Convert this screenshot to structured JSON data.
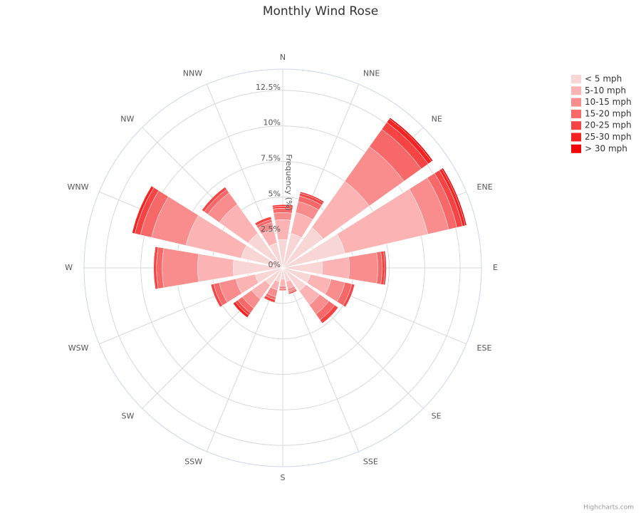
{
  "chart_data": {
    "type": "windrose",
    "title": "Monthly Wind Rose",
    "y_axis_title": "Frequency (%)",
    "credit": "Highcharts.com",
    "categories": [
      "N",
      "NNE",
      "NE",
      "ENE",
      "E",
      "ESE",
      "SE",
      "SSE",
      "S",
      "SSW",
      "SW",
      "WSW",
      "W",
      "WNW",
      "NW",
      "NNW"
    ],
    "ylim": [
      0,
      14
    ],
    "yticks": [
      {
        "value": 0,
        "label": "0%"
      },
      {
        "value": 2.5,
        "label": "2.5%"
      },
      {
        "value": 5,
        "label": "5%"
      },
      {
        "value": 7.5,
        "label": "7.5%"
      },
      {
        "value": 10,
        "label": "10%"
      },
      {
        "value": 12.5,
        "label": "12.5%"
      }
    ],
    "grid": true,
    "stacked": true,
    "legend_position": "top-right",
    "series": [
      {
        "name": "< 5 mph",
        "color": "#f9d6d6",
        "values": [
          2.0,
          2.5,
          3.5,
          4.5,
          2.8,
          2.0,
          2.0,
          1.0,
          0.8,
          1.0,
          1.5,
          2.0,
          3.5,
          3.0,
          3.0,
          1.8
        ]
      },
      {
        "name": "5-10 mph",
        "color": "#fbb3b3",
        "values": [
          1.4,
          1.5,
          4.0,
          6.0,
          1.9,
          1.5,
          1.2,
          0.5,
          0.5,
          0.6,
          1.2,
          1.4,
          2.5,
          4.0,
          2.5,
          1.0
        ]
      },
      {
        "name": "10-15 mph",
        "color": "#f98c8c",
        "values": [
          0.5,
          0.8,
          3.0,
          1.5,
          2.0,
          1.0,
          0.8,
          0.2,
          0.2,
          0.5,
          0.8,
          1.2,
          2.5,
          2.5,
          1.0,
          0.5
        ]
      },
      {
        "name": "15-20 mph",
        "color": "#f76868",
        "values": [
          0.3,
          0.4,
          1.5,
          0.6,
          0.3,
          0.5,
          0.5,
          0.1,
          0.1,
          0.2,
          0.4,
          0.4,
          0.4,
          0.8,
          0.3,
          0.2
        ]
      },
      {
        "name": "20-25 mph",
        "color": "#f64444",
        "values": [
          0.15,
          0.2,
          0.6,
          0.4,
          0.2,
          0.2,
          0.3,
          0.1,
          0.0,
          0.2,
          0.2,
          0.2,
          0.2,
          0.4,
          0.2,
          0.2
        ]
      },
      {
        "name": "25-30 mph",
        "color": "#f52222",
        "values": [
          0.1,
          0.1,
          0.3,
          0.2,
          0.1,
          0.0,
          0.0,
          0.0,
          0.0,
          0.0,
          0.2,
          0.0,
          0.0,
          0.2,
          0.0,
          0.0
        ]
      },
      {
        "name": "> 30 mph",
        "color": "#f40000",
        "values": [
          0.0,
          0.0,
          0.1,
          0.1,
          0.0,
          0.0,
          0.0,
          0.0,
          0.0,
          0.0,
          0.0,
          0.0,
          0.0,
          0.0,
          0.0,
          0.0
        ]
      }
    ]
  }
}
